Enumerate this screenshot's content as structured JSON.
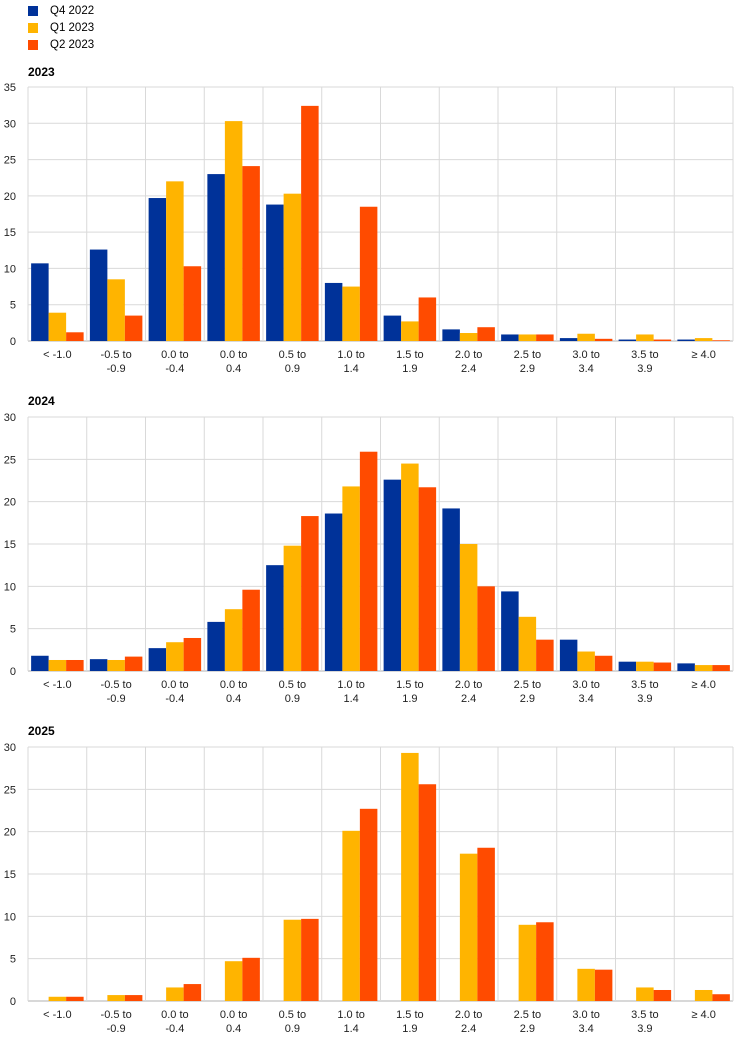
{
  "legend": [
    {
      "label": "Q4 2022",
      "color": "#003299"
    },
    {
      "label": "Q1 2023",
      "color": "#FFB400"
    },
    {
      "label": "Q2 2023",
      "color": "#FF4B00"
    }
  ],
  "chart_data": [
    {
      "type": "bar",
      "title": "2023",
      "ylim": [
        0,
        35
      ],
      "yticks": [
        0,
        5,
        10,
        15,
        20,
        25,
        30,
        35
      ],
      "grid": true,
      "categories": [
        [
          "< -1.0",
          ""
        ],
        [
          "-0.5  to",
          "-0.9"
        ],
        [
          "0.0  to",
          "-0.4"
        ],
        [
          "0.0  to",
          "0.4"
        ],
        [
          "0.5  to",
          "0.9"
        ],
        [
          "1.0  to",
          "1.4"
        ],
        [
          "1.5  to",
          "1.9"
        ],
        [
          "2.0  to",
          "2.4"
        ],
        [
          "2.5  to",
          "2.9"
        ],
        [
          "3.0  to",
          "3.4"
        ],
        [
          "3.5  to",
          "3.9"
        ],
        [
          "≥ 4.0",
          ""
        ]
      ],
      "series": [
        {
          "name": "Q4 2022",
          "values": [
            10.7,
            12.6,
            19.7,
            23.0,
            18.8,
            8.0,
            3.5,
            1.6,
            0.9,
            0.4,
            0.2,
            0.2
          ]
        },
        {
          "name": "Q1 2023",
          "values": [
            3.9,
            8.5,
            22.0,
            30.3,
            20.3,
            7.5,
            2.7,
            1.1,
            0.9,
            1.0,
            0.9,
            0.4
          ]
        },
        {
          "name": "Q2 2023",
          "values": [
            1.2,
            3.5,
            10.3,
            24.1,
            32.4,
            18.5,
            6.0,
            1.9,
            0.9,
            0.3,
            0.2,
            0.1
          ]
        }
      ]
    },
    {
      "type": "bar",
      "title": "2024",
      "ylim": [
        0,
        30
      ],
      "yticks": [
        0,
        5,
        10,
        15,
        20,
        25,
        30
      ],
      "grid": true,
      "categories": [
        [
          "< -1.0",
          ""
        ],
        [
          "-0.5  to",
          "-0.9"
        ],
        [
          "0.0  to",
          "-0.4"
        ],
        [
          "0.0  to",
          "0.4"
        ],
        [
          "0.5  to",
          "0.9"
        ],
        [
          "1.0  to",
          "1.4"
        ],
        [
          "1.5  to",
          "1.9"
        ],
        [
          "2.0  to",
          "2.4"
        ],
        [
          "2.5  to",
          "2.9"
        ],
        [
          "3.0  to",
          "3.4"
        ],
        [
          "3.5  to",
          "3.9"
        ],
        [
          "≥ 4.0",
          ""
        ]
      ],
      "series": [
        {
          "name": "Q4 2022",
          "values": [
            1.8,
            1.4,
            2.7,
            5.8,
            12.5,
            18.6,
            22.6,
            19.2,
            9.4,
            3.7,
            1.1,
            0.9
          ]
        },
        {
          "name": "Q1 2023",
          "values": [
            1.3,
            1.3,
            3.4,
            7.3,
            14.8,
            21.8,
            24.5,
            15.0,
            6.4,
            2.3,
            1.1,
            0.7
          ]
        },
        {
          "name": "Q2 2023",
          "values": [
            1.3,
            1.7,
            3.9,
            9.6,
            18.3,
            25.9,
            21.7,
            10.0,
            3.7,
            1.8,
            1.0,
            0.7
          ]
        }
      ]
    },
    {
      "type": "bar",
      "title": "2025",
      "ylim": [
        0,
        30
      ],
      "yticks": [
        0,
        5,
        10,
        15,
        20,
        25,
        30
      ],
      "grid": true,
      "categories": [
        [
          "< -1.0",
          ""
        ],
        [
          "-0.5  to",
          "-0.9"
        ],
        [
          "0.0  to",
          "-0.4"
        ],
        [
          "0.0  to",
          "0.4"
        ],
        [
          "0.5  to",
          "0.9"
        ],
        [
          "1.0  to",
          "1.4"
        ],
        [
          "1.5  to",
          "1.9"
        ],
        [
          "2.0  to",
          "2.4"
        ],
        [
          "2.5  to",
          "2.9"
        ],
        [
          "3.0  to",
          "3.4"
        ],
        [
          "3.5  to",
          "3.9"
        ],
        [
          "≥ 4.0",
          ""
        ]
      ],
      "series": [
        {
          "name": "Q1 2023",
          "values": [
            0.5,
            0.7,
            1.6,
            4.7,
            9.6,
            20.1,
            29.3,
            17.4,
            9.0,
            3.8,
            1.6,
            1.3
          ]
        },
        {
          "name": "Q2 2023",
          "values": [
            0.5,
            0.7,
            2.0,
            5.1,
            9.7,
            22.7,
            25.6,
            18.1,
            9.3,
            3.7,
            1.3,
            0.8
          ]
        }
      ]
    }
  ]
}
